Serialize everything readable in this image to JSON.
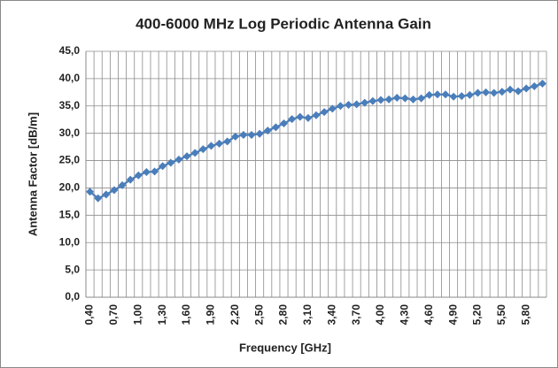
{
  "chart_data": {
    "type": "line",
    "title": "400-6000 MHz Log Periodic Antenna Gain",
    "x_label": "Frequency [GHz]",
    "y_label": "Antenna Factor [dB/m]",
    "categories": [
      "0,40",
      null,
      null,
      "0,70",
      null,
      null,
      "1,00",
      null,
      null,
      "1,30",
      null,
      null,
      "1,60",
      null,
      null,
      "1,90",
      null,
      null,
      "2,20",
      null,
      null,
      "2,50",
      null,
      null,
      "2,80",
      null,
      null,
      "3,10",
      null,
      null,
      "3,40",
      null,
      null,
      "3,70",
      null,
      null,
      "4,00",
      null,
      null,
      "4,30",
      null,
      null,
      "4,60",
      null,
      null,
      "4,90",
      null,
      null,
      "5,20",
      null,
      null,
      "5,50",
      null,
      null,
      "5,80",
      null,
      null
    ],
    "series": [
      {
        "color": "#4a7ebb",
        "values": [
          19.3,
          18.1,
          18.8,
          19.6,
          20.5,
          21.5,
          22.3,
          22.9,
          23.0,
          24.0,
          24.6,
          25.2,
          25.8,
          26.4,
          27.1,
          27.7,
          28.1,
          28.5,
          29.4,
          29.7,
          29.7,
          29.9,
          30.5,
          31.1,
          31.8,
          32.6,
          33.0,
          32.8,
          33.3,
          33.9,
          34.5,
          35.0,
          35.2,
          35.3,
          35.6,
          35.9,
          36.1,
          36.2,
          36.5,
          36.4,
          36.2,
          36.4,
          37.0,
          37.1,
          37.1,
          36.7,
          36.8,
          37.0,
          37.4,
          37.5,
          37.4,
          37.6,
          38.0,
          37.7,
          38.2,
          38.6,
          39.1
        ]
      }
    ],
    "ylim": [
      0,
      45
    ],
    "yticks": [
      {
        "value": 0,
        "label": "0,0"
      },
      {
        "value": 5,
        "label": "5,0"
      },
      {
        "value": 10,
        "label": "10,0"
      },
      {
        "value": 15,
        "label": "15,0"
      },
      {
        "value": 20,
        "label": "20,0"
      },
      {
        "value": 25,
        "label": "25,0"
      },
      {
        "value": 30,
        "label": "30,0"
      },
      {
        "value": 35,
        "label": "35,0"
      },
      {
        "value": 40,
        "label": "40,0"
      },
      {
        "value": 45,
        "label": "45,0"
      }
    ],
    "grid": true
  }
}
